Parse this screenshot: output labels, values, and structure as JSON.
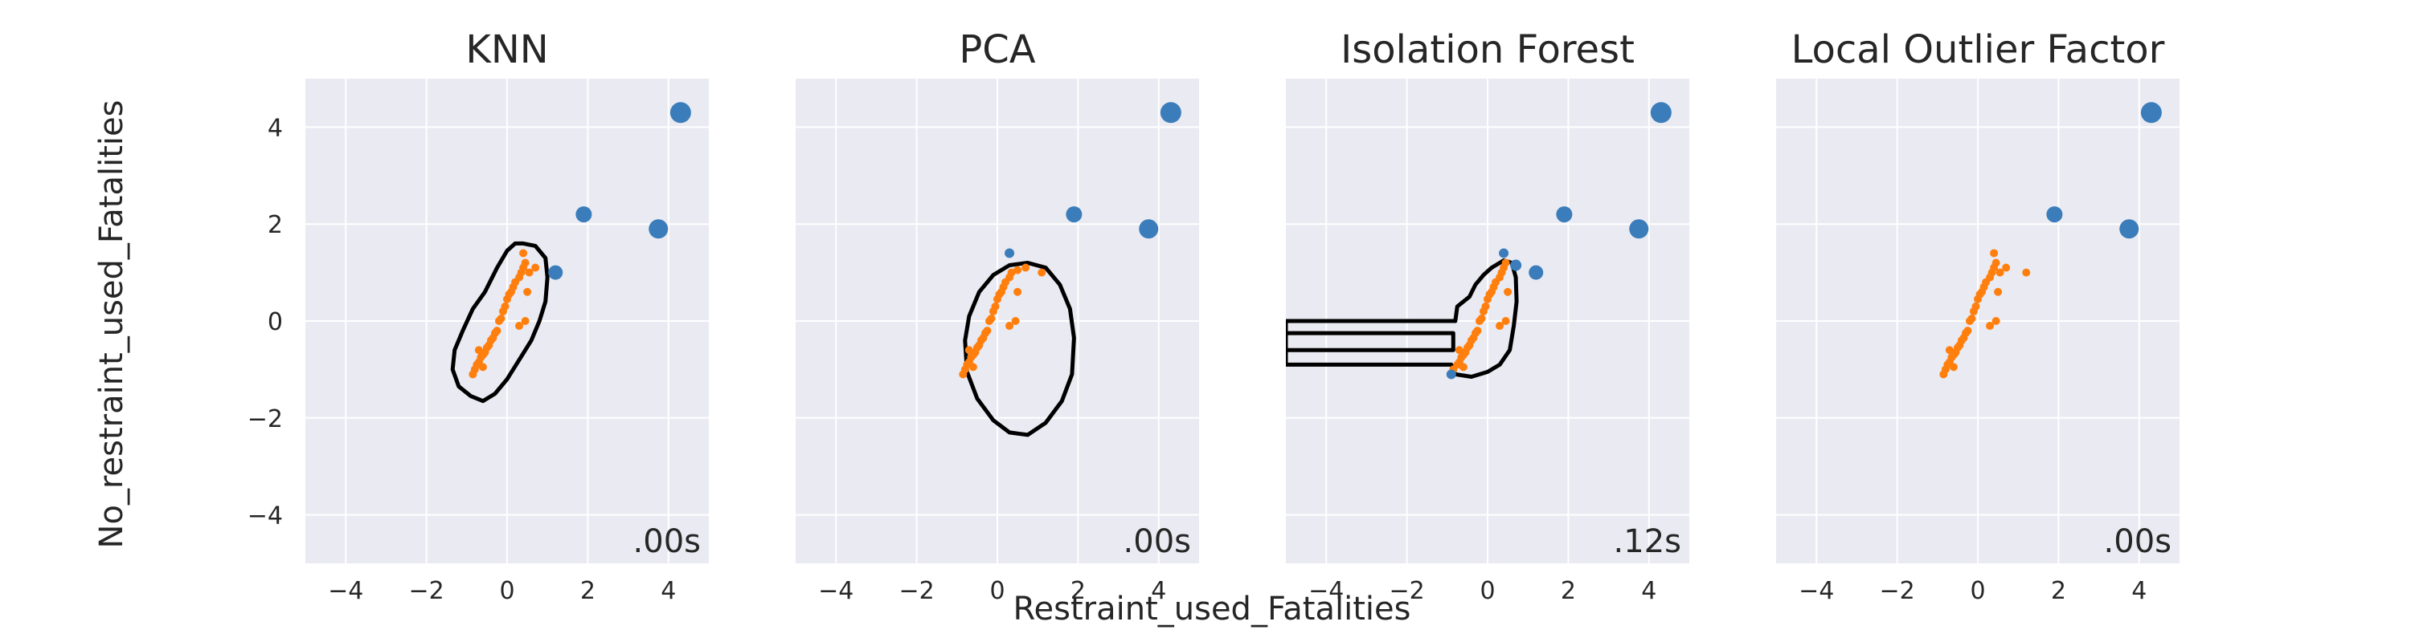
{
  "figure": {
    "xlabel": "Restraint_used_Fatalities",
    "ylabel": "No_restraint_used_Fatalities"
  },
  "colors": {
    "panel_bg": "#EAEAF2",
    "grid": "#FFFFFF",
    "outlier": "#3A7DBA",
    "inlier": "#FF7F0E",
    "boundary": "#000000"
  },
  "chart_data": [
    {
      "type": "scatter",
      "title": "KNN",
      "timing": ".00s",
      "xlim": [
        -5,
        5
      ],
      "ylim": [
        -5,
        5
      ],
      "xticks": [
        -4,
        -2,
        0,
        2,
        4
      ],
      "yticks": [
        -4,
        -2,
        0,
        2,
        4
      ],
      "show_ytick_labels": true,
      "grid": true,
      "inliers": [
        [
          -0.85,
          -1.1
        ],
        [
          -0.8,
          -1.0
        ],
        [
          -0.75,
          -0.9
        ],
        [
          -0.7,
          -0.85
        ],
        [
          -0.65,
          -0.75
        ],
        [
          -0.6,
          -0.7
        ],
        [
          -0.55,
          -0.65
        ],
        [
          -0.5,
          -0.55
        ],
        [
          -0.45,
          -0.5
        ],
        [
          -0.4,
          -0.4
        ],
        [
          -0.35,
          -0.35
        ],
        [
          -0.3,
          -0.25
        ],
        [
          -0.25,
          -0.2
        ],
        [
          -0.2,
          0.0
        ],
        [
          -0.15,
          0.05
        ],
        [
          -0.1,
          0.2
        ],
        [
          -0.05,
          0.3
        ],
        [
          0.0,
          0.45
        ],
        [
          0.05,
          0.55
        ],
        [
          0.1,
          0.6
        ],
        [
          0.15,
          0.7
        ],
        [
          0.2,
          0.8
        ],
        [
          0.3,
          0.9
        ],
        [
          0.35,
          1.0
        ],
        [
          0.4,
          1.1
        ],
        [
          0.45,
          1.2
        ],
        [
          0.4,
          1.4
        ],
        [
          0.55,
          1.0
        ],
        [
          0.7,
          1.1
        ],
        [
          0.5,
          0.6
        ],
        [
          0.45,
          0.0
        ],
        [
          0.3,
          -0.1
        ],
        [
          -0.6,
          -0.95
        ],
        [
          -0.7,
          -0.6
        ]
      ],
      "outliers": [
        [
          1.2,
          1.0,
          9
        ],
        [
          1.9,
          2.2,
          10
        ],
        [
          3.75,
          1.9,
          12
        ],
        [
          4.3,
          4.3,
          13
        ]
      ],
      "boundaries": [
        [
          [
            0.4,
            1.6
          ],
          [
            0.7,
            1.55
          ],
          [
            0.95,
            1.3
          ],
          [
            1.0,
            0.9
          ],
          [
            0.95,
            0.4
          ],
          [
            0.8,
            0.0
          ],
          [
            0.6,
            -0.4
          ],
          [
            0.3,
            -0.8
          ],
          [
            0.0,
            -1.2
          ],
          [
            -0.3,
            -1.5
          ],
          [
            -0.6,
            -1.65
          ],
          [
            -0.9,
            -1.55
          ],
          [
            -1.2,
            -1.35
          ],
          [
            -1.35,
            -1.0
          ],
          [
            -1.3,
            -0.6
          ],
          [
            -1.1,
            -0.2
          ],
          [
            -0.85,
            0.25
          ],
          [
            -0.55,
            0.6
          ],
          [
            -0.25,
            1.1
          ],
          [
            0.0,
            1.45
          ],
          [
            0.2,
            1.6
          ],
          [
            0.4,
            1.6
          ]
        ]
      ]
    },
    {
      "type": "scatter",
      "title": "PCA",
      "timing": ".00s",
      "xlim": [
        -5,
        5
      ],
      "ylim": [
        -5,
        5
      ],
      "xticks": [
        -4,
        -2,
        0,
        2,
        4
      ],
      "yticks": [
        -4,
        -2,
        0,
        2,
        4
      ],
      "show_ytick_labels": false,
      "grid": true,
      "inliers": [
        [
          -0.85,
          -1.1
        ],
        [
          -0.8,
          -1.0
        ],
        [
          -0.75,
          -0.9
        ],
        [
          -0.7,
          -0.85
        ],
        [
          -0.65,
          -0.75
        ],
        [
          -0.6,
          -0.7
        ],
        [
          -0.55,
          -0.65
        ],
        [
          -0.5,
          -0.55
        ],
        [
          -0.45,
          -0.5
        ],
        [
          -0.4,
          -0.4
        ],
        [
          -0.35,
          -0.35
        ],
        [
          -0.3,
          -0.25
        ],
        [
          -0.25,
          -0.2
        ],
        [
          -0.2,
          0.0
        ],
        [
          -0.15,
          0.05
        ],
        [
          -0.1,
          0.2
        ],
        [
          -0.05,
          0.3
        ],
        [
          0.0,
          0.45
        ],
        [
          0.05,
          0.55
        ],
        [
          0.1,
          0.6
        ],
        [
          0.15,
          0.7
        ],
        [
          0.2,
          0.8
        ],
        [
          0.3,
          0.9
        ],
        [
          0.35,
          1.0
        ],
        [
          0.5,
          1.05
        ],
        [
          0.7,
          1.1
        ],
        [
          1.1,
          1.0
        ],
        [
          0.5,
          0.6
        ],
        [
          0.45,
          0.0
        ],
        [
          0.3,
          -0.1
        ],
        [
          -0.6,
          -0.95
        ],
        [
          -0.7,
          -0.6
        ]
      ],
      "outliers": [
        [
          0.3,
          1.4,
          6
        ],
        [
          1.9,
          2.2,
          10
        ],
        [
          3.75,
          1.9,
          12
        ],
        [
          4.3,
          4.3,
          13
        ]
      ],
      "boundaries": [
        [
          [
            0.75,
            1.2
          ],
          [
            1.2,
            1.1
          ],
          [
            1.55,
            0.75
          ],
          [
            1.8,
            0.25
          ],
          [
            1.9,
            -0.35
          ],
          [
            1.85,
            -1.1
          ],
          [
            1.6,
            -1.65
          ],
          [
            1.2,
            -2.1
          ],
          [
            0.75,
            -2.35
          ],
          [
            0.3,
            -2.3
          ],
          [
            -0.1,
            -2.05
          ],
          [
            -0.5,
            -1.6
          ],
          [
            -0.75,
            -1.05
          ],
          [
            -0.8,
            -0.4
          ],
          [
            -0.7,
            0.1
          ],
          [
            -0.45,
            0.6
          ],
          [
            -0.1,
            0.95
          ],
          [
            0.3,
            1.15
          ],
          [
            0.75,
            1.2
          ]
        ]
      ]
    },
    {
      "type": "scatter",
      "title": "Isolation Forest",
      "timing": ".12s",
      "xlim": [
        -5,
        5
      ],
      "ylim": [
        -5,
        5
      ],
      "xticks": [
        -4,
        -2,
        0,
        2,
        4
      ],
      "yticks": [
        -4,
        -2,
        0,
        2,
        4
      ],
      "show_ytick_labels": false,
      "grid": true,
      "inliers": [
        [
          -0.85,
          -1.0
        ],
        [
          -0.75,
          -0.9
        ],
        [
          -0.7,
          -0.85
        ],
        [
          -0.65,
          -0.75
        ],
        [
          -0.6,
          -0.7
        ],
        [
          -0.55,
          -0.65
        ],
        [
          -0.5,
          -0.55
        ],
        [
          -0.45,
          -0.5
        ],
        [
          -0.4,
          -0.4
        ],
        [
          -0.35,
          -0.35
        ],
        [
          -0.3,
          -0.25
        ],
        [
          -0.25,
          -0.2
        ],
        [
          -0.2,
          0.0
        ],
        [
          -0.15,
          0.05
        ],
        [
          -0.1,
          0.2
        ],
        [
          -0.05,
          0.3
        ],
        [
          0.0,
          0.45
        ],
        [
          0.05,
          0.55
        ],
        [
          0.1,
          0.6
        ],
        [
          0.15,
          0.7
        ],
        [
          0.2,
          0.8
        ],
        [
          0.3,
          0.9
        ],
        [
          0.35,
          1.0
        ],
        [
          0.4,
          1.1
        ],
        [
          0.45,
          1.2
        ],
        [
          0.5,
          0.6
        ],
        [
          0.45,
          0.0
        ],
        [
          0.3,
          -0.1
        ],
        [
          -0.6,
          -0.95
        ],
        [
          -0.7,
          -0.6
        ]
      ],
      "outliers": [
        [
          -0.9,
          -1.1,
          6
        ],
        [
          0.4,
          1.4,
          6
        ],
        [
          0.7,
          1.15,
          7
        ],
        [
          1.2,
          1.0,
          9
        ],
        [
          1.9,
          2.2,
          10
        ],
        [
          3.75,
          1.9,
          12
        ],
        [
          4.3,
          4.3,
          13
        ]
      ],
      "boundaries": [
        [
          [
            -5.0,
            0.0
          ],
          [
            -0.8,
            0.0
          ],
          [
            -0.75,
            0.3
          ],
          [
            -0.45,
            0.5
          ],
          [
            -0.3,
            0.75
          ],
          [
            -0.1,
            0.95
          ],
          [
            0.1,
            1.1
          ],
          [
            0.4,
            1.25
          ],
          [
            0.6,
            1.2
          ],
          [
            0.7,
            0.9
          ],
          [
            0.72,
            0.4
          ],
          [
            0.65,
            -0.1
          ],
          [
            0.55,
            -0.6
          ],
          [
            0.3,
            -0.9
          ],
          [
            0.0,
            -1.05
          ],
          [
            -0.4,
            -1.15
          ],
          [
            -0.8,
            -1.1
          ],
          [
            -0.9,
            -0.9
          ],
          [
            -5.0,
            -0.9
          ]
        ],
        [
          [
            -5.0,
            -0.25
          ],
          [
            -0.85,
            -0.25
          ],
          [
            -0.85,
            -0.6
          ],
          [
            -5.0,
            -0.6
          ]
        ]
      ]
    },
    {
      "type": "scatter",
      "title": "Local Outlier Factor",
      "timing": ".00s",
      "xlim": [
        -5,
        5
      ],
      "ylim": [
        -5,
        5
      ],
      "xticks": [
        -4,
        -2,
        0,
        2,
        4
      ],
      "yticks": [
        -4,
        -2,
        0,
        2,
        4
      ],
      "show_ytick_labels": false,
      "grid": true,
      "inliers": [
        [
          -0.85,
          -1.1
        ],
        [
          -0.8,
          -1.0
        ],
        [
          -0.75,
          -0.9
        ],
        [
          -0.7,
          -0.85
        ],
        [
          -0.65,
          -0.75
        ],
        [
          -0.6,
          -0.7
        ],
        [
          -0.55,
          -0.65
        ],
        [
          -0.5,
          -0.55
        ],
        [
          -0.45,
          -0.5
        ],
        [
          -0.4,
          -0.4
        ],
        [
          -0.35,
          -0.35
        ],
        [
          -0.3,
          -0.25
        ],
        [
          -0.25,
          -0.2
        ],
        [
          -0.2,
          0.0
        ],
        [
          -0.15,
          0.05
        ],
        [
          -0.1,
          0.2
        ],
        [
          -0.05,
          0.3
        ],
        [
          0.0,
          0.45
        ],
        [
          0.05,
          0.55
        ],
        [
          0.1,
          0.6
        ],
        [
          0.15,
          0.7
        ],
        [
          0.2,
          0.8
        ],
        [
          0.3,
          0.9
        ],
        [
          0.35,
          1.0
        ],
        [
          0.4,
          1.1
        ],
        [
          0.45,
          1.2
        ],
        [
          0.4,
          1.4
        ],
        [
          0.55,
          1.0
        ],
        [
          0.7,
          1.1
        ],
        [
          1.2,
          1.0
        ],
        [
          0.5,
          0.6
        ],
        [
          0.45,
          0.0
        ],
        [
          0.3,
          -0.1
        ],
        [
          -0.6,
          -0.95
        ],
        [
          -0.7,
          -0.6
        ]
      ],
      "outliers": [
        [
          1.9,
          2.2,
          10
        ],
        [
          3.75,
          1.9,
          12
        ],
        [
          4.3,
          4.3,
          13
        ]
      ],
      "boundaries": []
    }
  ]
}
